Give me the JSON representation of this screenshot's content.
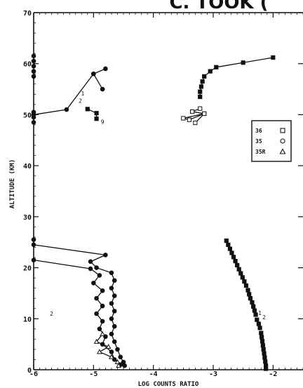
{
  "chart_data": {
    "type": "scatter",
    "title_fragment": "C. TOOK (",
    "xlabel": "LOG COUNTS RATIO",
    "ylabel": "ALTITUDE (KM)",
    "xlim": [
      -6,
      -1.5
    ],
    "ylim": [
      0,
      70
    ],
    "x_ticks": [
      -6,
      -5,
      -4,
      -3,
      -2
    ],
    "y_ticks": [
      0,
      10,
      20,
      30,
      40,
      50,
      60,
      70
    ],
    "x_tick_labels": [
      "-6",
      "-5",
      "-4",
      "-3",
      "-2"
    ],
    "y_tick_labels": [
      "0",
      "10",
      "20",
      "30",
      "40",
      "50",
      "60",
      "70"
    ],
    "legend": {
      "placement": "right",
      "entries": [
        {
          "label": "36",
          "marker": "square"
        },
        {
          "label": "35",
          "marker": "circle"
        },
        {
          "label": "35R",
          "marker": "triangle"
        }
      ]
    },
    "annotations": [
      {
        "text": "2",
        "x": -5.22,
        "y": 52.3
      },
      {
        "text": "1",
        "x": -5.18,
        "y": 53.8
      },
      {
        "text": "9",
        "x": -4.85,
        "y": 48.2
      },
      {
        "text": "2",
        "x": -5.7,
        "y": 10.6
      },
      {
        "text": "1",
        "x": -2.22,
        "y": 10.7
      },
      {
        "text": "2",
        "x": -2.15,
        "y": 9.9
      }
    ],
    "series": [
      {
        "marker": "circle",
        "filled": true,
        "connected": true,
        "points": [
          [
            -6.0,
            50.0
          ],
          [
            -5.45,
            51.0
          ],
          [
            -5.0,
            58.0
          ],
          [
            -4.8,
            59.0
          ],
          [
            -5.0,
            58.0
          ],
          [
            -4.85,
            55.0
          ]
        ]
      },
      {
        "marker": "square",
        "filled": true,
        "connected": true,
        "points": [
          [
            -5.1,
            51.1
          ],
          [
            -4.95,
            50.3
          ],
          [
            -4.95,
            49.2
          ]
        ]
      },
      {
        "marker": "square",
        "filled": true,
        "connected": true,
        "points": [
          [
            -2.0,
            61.2
          ],
          [
            -2.5,
            60.2
          ],
          [
            -2.95,
            59.3
          ],
          [
            -3.05,
            58.5
          ],
          [
            -3.15,
            57.5
          ],
          [
            -3.18,
            56.5
          ],
          [
            -3.2,
            55.5
          ],
          [
            -3.22,
            54.5
          ],
          [
            -3.22,
            53.5
          ]
        ]
      },
      {
        "marker": "square",
        "filled": false,
        "connected": true,
        "points": [
          [
            -3.22,
            51.2
          ],
          [
            -3.35,
            50.6
          ],
          [
            -3.15,
            50.2
          ],
          [
            -3.4,
            49.0
          ],
          [
            -3.5,
            49.3
          ],
          [
            -3.15,
            50.2
          ],
          [
            -3.3,
            48.4
          ]
        ]
      },
      {
        "marker": "circle",
        "filled": true,
        "connected": true,
        "points": [
          [
            -6.0,
            24.5
          ],
          [
            -4.8,
            22.5
          ],
          [
            -5.05,
            21.2
          ],
          [
            -4.95,
            20.0
          ],
          [
            -4.7,
            19.0
          ],
          [
            -4.65,
            17.5
          ],
          [
            -4.7,
            16.0
          ],
          [
            -4.65,
            14.5
          ],
          [
            -4.7,
            13.0
          ],
          [
            -4.65,
            11.5
          ],
          [
            -4.7,
            10.0
          ],
          [
            -4.65,
            8.5
          ],
          [
            -4.7,
            7.0
          ],
          [
            -4.65,
            5.5
          ],
          [
            -4.6,
            4.0
          ],
          [
            -4.55,
            2.5
          ],
          [
            -4.5,
            1.5
          ],
          [
            -4.48,
            0.8
          ]
        ]
      },
      {
        "marker": "circle",
        "filled": true,
        "connected": true,
        "points": [
          [
            -6.0,
            21.5
          ],
          [
            -5.05,
            19.8
          ],
          [
            -4.9,
            18.5
          ],
          [
            -5.0,
            17.0
          ],
          [
            -4.85,
            15.5
          ],
          [
            -4.95,
            14.0
          ],
          [
            -4.85,
            12.5
          ],
          [
            -4.95,
            11.0
          ],
          [
            -4.85,
            9.5
          ],
          [
            -4.9,
            8.0
          ],
          [
            -4.8,
            6.5
          ],
          [
            -4.85,
            5.0
          ],
          [
            -4.7,
            3.5
          ],
          [
            -4.65,
            2.0
          ],
          [
            -4.55,
            1.0
          ]
        ]
      },
      {
        "marker": "triangle",
        "filled": false,
        "connected": true,
        "points": [
          [
            -4.85,
            7.0
          ],
          [
            -4.95,
            5.5
          ],
          [
            -4.75,
            4.5
          ],
          [
            -4.9,
            3.5
          ],
          [
            -4.7,
            2.5
          ],
          [
            -4.6,
            1.5
          ],
          [
            -4.58,
            0.8
          ]
        ]
      },
      {
        "marker": "circle",
        "filled": true,
        "connected": false,
        "points": [
          [
            -6.0,
            61.5
          ],
          [
            -6.0,
            60.5
          ],
          [
            -6.0,
            59.5
          ],
          [
            -6.0,
            58.5
          ],
          [
            -6.0,
            57.5
          ],
          [
            -6.0,
            50.5
          ],
          [
            -6.0,
            49.5
          ],
          [
            -6.0,
            48.5
          ],
          [
            -6.0,
            25.5
          ]
        ]
      },
      {
        "marker": "square",
        "filled": true,
        "connected": false,
        "points": [
          [
            -2.78,
            25.3
          ],
          [
            -2.75,
            24.5
          ],
          [
            -2.72,
            23.7
          ],
          [
            -2.69,
            22.9
          ],
          [
            -2.66,
            22.1
          ],
          [
            -2.63,
            21.3
          ],
          [
            -2.6,
            20.5
          ],
          [
            -2.57,
            19.7
          ],
          [
            -2.54,
            18.9
          ],
          [
            -2.51,
            18.1
          ],
          [
            -2.48,
            17.3
          ],
          [
            -2.45,
            16.5
          ],
          [
            -2.42,
            15.6
          ],
          [
            -2.4,
            14.8
          ],
          [
            -2.38,
            14.0
          ],
          [
            -2.35,
            13.2
          ],
          [
            -2.33,
            12.4
          ],
          [
            -2.31,
            11.6
          ],
          [
            -2.29,
            10.8
          ],
          [
            -2.27,
            9.8
          ],
          [
            -2.24,
            9.0
          ],
          [
            -2.22,
            8.2
          ],
          [
            -2.2,
            7.2
          ],
          [
            -2.19,
            6.4
          ],
          [
            -2.18,
            5.6
          ],
          [
            -2.17,
            4.8
          ],
          [
            -2.16,
            4.0
          ],
          [
            -2.15,
            3.2
          ],
          [
            -2.14,
            2.4
          ],
          [
            -2.13,
            1.6
          ],
          [
            -2.12,
            0.8
          ],
          [
            -2.12,
            0.2
          ]
        ]
      }
    ]
  }
}
